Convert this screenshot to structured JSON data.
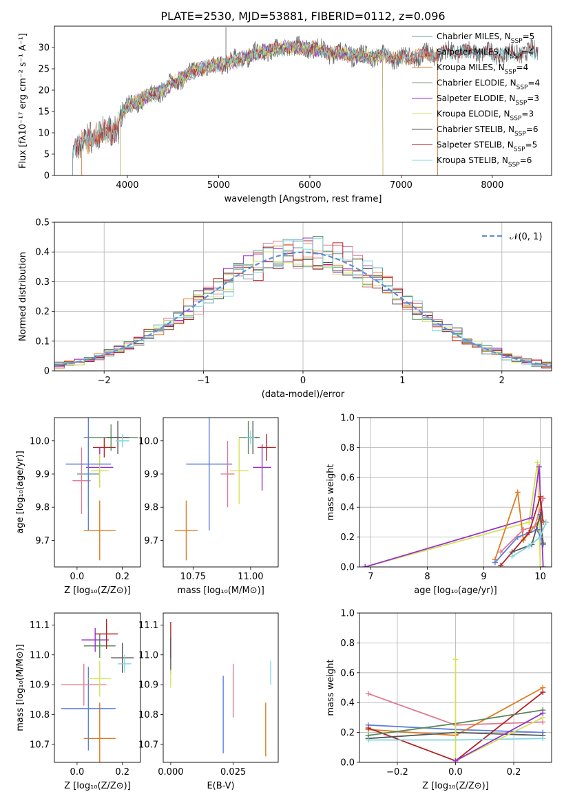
{
  "figure_title": "PLATE=2530, MJD=53881, FIBERID=0112, z=0.096",
  "colors": {
    "Chabrier MILES": "#5f9ea0",
    "Salpeter MILES": "#e07b91",
    "Kroupa MILES": "#e07b1f",
    "Chabrier ELODIE": "#5a8a5a",
    "Salpeter ELODIE": "#9932cc",
    "Kroupa ELODIE": "#d4e157",
    "Chabrier STELIB": "#555555",
    "Salpeter STELIB": "#b22222",
    "Kroupa STELIB": "#7fd6e0",
    "normal": "#5b8fd6",
    "blue": "#5b7fdb"
  },
  "chart_data": [
    {
      "id": "spectrum",
      "type": "line",
      "title": "",
      "xlabel": "wavelength [Angstrom, rest frame]",
      "ylabel": "Flux [fλ10⁻¹⁷ erg cm⁻² s⁻¹ A⁻¹]",
      "xlim": [
        3200,
        8650
      ],
      "ylim": [
        0,
        35
      ],
      "xticks": [
        4000,
        5000,
        6000,
        7000,
        8000
      ],
      "yticks": [
        0,
        5,
        10,
        15,
        20,
        25,
        30
      ],
      "grid": false,
      "legend": "right",
      "envelope": {
        "x": [
          3450,
          3550,
          3700,
          3850,
          4000,
          4150,
          4300,
          4450,
          4600,
          4800,
          5000,
          5200,
          5400,
          5600,
          5800,
          6000,
          6200,
          6400,
          6600,
          6800,
          7000,
          7200,
          7400,
          7600,
          7800,
          8000,
          8200,
          8400
        ],
        "y": [
          6.5,
          8.5,
          9.5,
          10.5,
          16,
          18,
          19,
          21,
          23,
          25,
          26,
          27,
          28.5,
          29.5,
          30,
          30,
          29,
          28.5,
          28,
          28,
          27.5,
          28,
          28.5,
          29,
          29,
          28.5,
          28.5,
          29
        ]
      },
      "series": [
        {
          "name": "Chabrier MILES, N_SSP=5",
          "start": 3500,
          "end": 7400
        },
        {
          "name": "Salpeter MILES, N_SSP=4",
          "start": 3500,
          "end": 7400
        },
        {
          "name": "Kroupa MILES, N_SSP=4",
          "start": 3500,
          "end": 7400
        },
        {
          "name": "Chabrier ELODIE, N_SSP=4",
          "start": 3920,
          "end": 6800
        },
        {
          "name": "Salpeter ELODIE, N_SSP=3",
          "start": 3920,
          "end": 6800
        },
        {
          "name": "Kroupa ELODIE, N_SSP=3",
          "start": 3920,
          "end": 6800
        },
        {
          "name": "Chabrier STELIB, N_SSP=6",
          "start": 3400,
          "end": 8500
        },
        {
          "name": "Salpeter STELIB, N_SSP=5",
          "start": 3400,
          "end": 8500
        },
        {
          "name": "Kroupa STELIB, N_SSP=6",
          "start": 3400,
          "end": 8500
        }
      ]
    },
    {
      "id": "residuals",
      "type": "histogram",
      "xlabel": "(data-model)/error",
      "ylabel": "Normed distribution",
      "xlim": [
        -2.5,
        2.5
      ],
      "ylim": [
        0,
        0.5
      ],
      "xticks": [
        -2,
        -1,
        0,
        1,
        2
      ],
      "xticklabels": [
        "−2",
        "−1",
        "0",
        "1",
        "2"
      ],
      "yticks": [
        0,
        0.1,
        0.2,
        0.3,
        0.4,
        0.5
      ],
      "grid": true,
      "legend": "top-right",
      "legend_label": "𝒩(0, 1)",
      "bin_width": 0.1
    },
    {
      "id": "age-vs-Z",
      "type": "errorbar",
      "xlabel": "Z [log₁₀(Z/Z⊙)]",
      "ylabel": "age  [log₁₀(age/yr)]",
      "xlim": [
        -0.1,
        0.28
      ],
      "ylim": [
        9.62,
        10.07
      ],
      "xticks": [
        0.0,
        0.2
      ],
      "xticklabels": [
        "0.0",
        "0.2"
      ],
      "yticks": [
        9.7,
        9.8,
        9.9,
        10.0
      ],
      "yticklabels": [
        "9.7",
        "9.8",
        "9.9",
        "10.0"
      ],
      "points": [
        {
          "model": "Chabrier MILES",
          "x": 0.05,
          "y": 9.9,
          "xerr": 0.05,
          "yerr": 0.1
        },
        {
          "model": "Salpeter MILES",
          "x": 0.02,
          "y": 9.88,
          "xerr": 0.04,
          "yerr": 0.1
        },
        {
          "model": "Kroupa MILES",
          "x": 0.1,
          "y": 9.73,
          "xerr": 0.07,
          "yerr": 0.09
        },
        {
          "model": "Chabrier ELODIE",
          "x": 0.15,
          "y": 10.01,
          "xerr": 0.12,
          "yerr": 0.04
        },
        {
          "model": "Salpeter ELODIE",
          "x": 0.1,
          "y": 9.92,
          "xerr": 0.06,
          "yerr": 0.06
        },
        {
          "model": "Kroupa ELODIE",
          "x": 0.1,
          "y": 9.91,
          "xerr": 0.04,
          "yerr": 0.05
        },
        {
          "model": "Chabrier STELIB",
          "x": 0.18,
          "y": 10.01,
          "xerr": 0.05,
          "yerr": 0.05
        },
        {
          "model": "Salpeter STELIB",
          "x": 0.12,
          "y": 9.98,
          "xerr": 0.05,
          "yerr": 0.03
        },
        {
          "model": "Kroupa STELIB",
          "x": 0.2,
          "y": 10.0,
          "xerr": 0.03,
          "yerr": 0.02
        },
        {
          "model": "blue",
          "x": 0.05,
          "y": 9.93,
          "xerr": 0.1,
          "yerr": 0.2
        }
      ]
    },
    {
      "id": "age-vs-mass",
      "type": "errorbar",
      "xlabel": "mass [log₁₀(M/M⊙)]",
      "ylabel": "",
      "xlim": [
        10.62,
        11.12
      ],
      "ylim": [
        9.62,
        10.07
      ],
      "xticks": [
        10.75,
        11.0
      ],
      "xticklabels": [
        "10.75",
        "11.00"
      ],
      "yticks": [
        9.7,
        9.8,
        9.9,
        10.0
      ],
      "yticklabels": [
        "9.7",
        "9.8",
        "9.9",
        "10.0"
      ],
      "points": [
        {
          "model": "Kroupa MILES",
          "x": 10.72,
          "y": 9.73,
          "xerr": 0.05,
          "yerr": 0.09
        },
        {
          "model": "blue",
          "x": 10.82,
          "y": 9.93,
          "xerr": 0.1,
          "yerr": 0.2
        },
        {
          "model": "Salpeter MILES",
          "x": 10.9,
          "y": 9.9,
          "xerr": 0.03,
          "yerr": 0.1
        },
        {
          "model": "Kroupa ELODIE",
          "x": 10.95,
          "y": 9.91,
          "xerr": 0.04,
          "yerr": 0.1
        },
        {
          "model": "Chabrier ELODIE",
          "x": 10.99,
          "y": 10.01,
          "xerr": 0.04,
          "yerr": 0.05
        },
        {
          "model": "Salpeter ELODIE",
          "x": 11.05,
          "y": 9.92,
          "xerr": 0.04,
          "yerr": 0.07
        },
        {
          "model": "Salpeter STELIB",
          "x": 11.07,
          "y": 9.98,
          "xerr": 0.04,
          "yerr": 0.04
        },
        {
          "model": "Chabrier STELIB",
          "x": 11.01,
          "y": 10.01,
          "xerr": 0.03,
          "yerr": 0.05
        },
        {
          "model": "Kroupa STELIB",
          "x": 11.0,
          "y": 10.01,
          "xerr": 0.02,
          "yerr": 0.02
        }
      ]
    },
    {
      "id": "weight-vs-age",
      "type": "line",
      "xlabel": "age  [log₁₀(age/yr)]",
      "ylabel": "mass weight",
      "xlim": [
        6.8,
        10.2
      ],
      "ylim": [
        0,
        1.0
      ],
      "xticks": [
        7,
        8,
        9,
        10
      ],
      "yticks": [
        0,
        0.2,
        0.4,
        0.6,
        0.8,
        1.0
      ],
      "yticklabels": [
        "0.0",
        "0.2",
        "0.4",
        "0.6",
        "0.8",
        "1.0"
      ],
      "grid": true,
      "series": [
        {
          "model": "Kroupa ELODIE",
          "x": [
            6.9,
            9.8,
            9.95,
            10.0
          ],
          "y": [
            0.0,
            0.3,
            0.7,
            0.0
          ]
        },
        {
          "model": "Salpeter ELODIE",
          "x": [
            6.9,
            9.85,
            9.98,
            10.05
          ],
          "y": [
            0.0,
            0.33,
            0.67,
            0.0
          ]
        },
        {
          "model": "Kroupa MILES",
          "x": [
            9.2,
            9.6,
            9.7,
            10.0,
            10.1
          ],
          "y": [
            0.05,
            0.5,
            0.18,
            0.32,
            0.3
          ]
        },
        {
          "model": "blue",
          "x": [
            9.2,
            9.6,
            9.95,
            10.05
          ],
          "y": [
            0.03,
            0.2,
            0.25,
            0.15
          ]
        },
        {
          "model": "Salpeter MILES",
          "x": [
            9.3,
            9.7,
            9.9,
            10.05
          ],
          "y": [
            0.1,
            0.25,
            0.27,
            0.46
          ]
        },
        {
          "model": "Salpeter STELIB",
          "x": [
            9.3,
            9.8,
            10.0,
            10.05
          ],
          "y": [
            0.01,
            0.23,
            0.47,
            0.3
          ]
        },
        {
          "model": "Chabrier STELIB",
          "x": [
            9.5,
            9.85,
            10.0,
            10.05
          ],
          "y": [
            0.1,
            0.15,
            0.35,
            0.16
          ]
        },
        {
          "model": "Kroupa STELIB",
          "x": [
            9.5,
            9.8,
            10.0,
            10.1
          ],
          "y": [
            0.07,
            0.14,
            0.2,
            0.3
          ]
        }
      ]
    },
    {
      "id": "mass-vs-Z",
      "type": "errorbar",
      "xlabel": "Z [log₁₀(Z/Z⊙)]",
      "ylabel": "mass [log₁₀(M/M⊙)]",
      "xlim": [
        -0.1,
        0.28
      ],
      "ylim": [
        10.64,
        11.14
      ],
      "xticks": [
        0.0,
        0.2
      ],
      "xticklabels": [
        "0.0",
        "0.2"
      ],
      "yticks": [
        10.7,
        10.8,
        10.9,
        11.0,
        11.1
      ],
      "yticklabels": [
        "10.7",
        "10.8",
        "10.9",
        "11.0",
        "11.1"
      ],
      "points": [
        {
          "model": "Kroupa MILES",
          "x": 0.1,
          "y": 10.72,
          "xerr": 0.07,
          "yerr": 0.12
        },
        {
          "model": "blue",
          "x": 0.05,
          "y": 10.82,
          "xerr": 0.12,
          "yerr": 0.14
        },
        {
          "model": "Salpeter MILES",
          "x": 0.03,
          "y": 10.9,
          "xerr": 0.1,
          "yerr": 0.07
        },
        {
          "model": "Kroupa ELODIE",
          "x": 0.1,
          "y": 10.92,
          "xerr": 0.05,
          "yerr": 0.06
        },
        {
          "model": "Chabrier ELODIE",
          "x": 0.1,
          "y": 11.03,
          "xerr": 0.07,
          "yerr": 0.04
        },
        {
          "model": "Salpeter ELODIE",
          "x": 0.08,
          "y": 11.05,
          "xerr": 0.06,
          "yerr": 0.04
        },
        {
          "model": "Salpeter STELIB",
          "x": 0.13,
          "y": 11.07,
          "xerr": 0.05,
          "yerr": 0.05
        },
        {
          "model": "Chabrier STELIB",
          "x": 0.2,
          "y": 10.99,
          "xerr": 0.05,
          "yerr": 0.05
        },
        {
          "model": "Kroupa STELIB",
          "x": 0.21,
          "y": 10.97,
          "xerr": 0.03,
          "yerr": 0.03
        }
      ]
    },
    {
      "id": "mass-vs-EBV",
      "type": "errorbar",
      "xlabel": "E(B-V)",
      "ylabel": "",
      "xlim": [
        -0.003,
        0.043
      ],
      "ylim": [
        10.64,
        11.14
      ],
      "xticks": [
        0.0,
        0.025
      ],
      "xticklabels": [
        "0.000",
        "0.025"
      ],
      "yticks": [
        10.7,
        10.8,
        10.9,
        11.0,
        11.1
      ],
      "yticklabels": [
        "10.7",
        "10.8",
        "10.9",
        "11.0",
        "11.1"
      ],
      "points": [
        {
          "model": "Salpeter STELIB",
          "x": 0.0,
          "y": 11.05,
          "xerr": 0,
          "yerr": 0.06
        },
        {
          "model": "Chabrier STELIB",
          "x": 0.0,
          "y": 11.0,
          "xerr": 0,
          "yerr": 0.06
        },
        {
          "model": "Kroupa ELODIE",
          "x": 0.0,
          "y": 10.92,
          "xerr": 0,
          "yerr": 0.03
        },
        {
          "model": "blue",
          "x": 0.021,
          "y": 10.8,
          "xerr": 0,
          "yerr": 0.13
        },
        {
          "model": "Salpeter MILES",
          "x": 0.025,
          "y": 10.88,
          "xerr": 0,
          "yerr": 0.09
        },
        {
          "model": "Kroupa MILES",
          "x": 0.038,
          "y": 10.75,
          "xerr": 0,
          "yerr": 0.09
        },
        {
          "model": "Kroupa STELIB",
          "x": 0.04,
          "y": 10.94,
          "xerr": 0,
          "yerr": 0.04
        }
      ]
    },
    {
      "id": "weight-vs-Z",
      "type": "line",
      "xlabel": "Z [log₁₀(Z/Z⊙)]",
      "ylabel": "mass weight",
      "xlim": [
        -0.33,
        0.33
      ],
      "ylim": [
        0,
        1.0
      ],
      "xticks": [
        -0.2,
        0.0,
        0.2
      ],
      "xticklabels": [
        "−0.2",
        "0.0",
        "0.2"
      ],
      "yticks": [
        0,
        0.2,
        0.4,
        0.6,
        0.8,
        1.0
      ],
      "yticklabels": [
        "0.0",
        "0.2",
        "0.4",
        "0.6",
        "0.8",
        "1.0"
      ],
      "grid": true,
      "series": [
        {
          "model": "Salpeter MILES",
          "x": [
            -0.3,
            0.0,
            0.3
          ],
          "y": [
            0.46,
            0.25,
            0.27
          ]
        },
        {
          "model": "blue",
          "x": [
            -0.3,
            0.0,
            0.3
          ],
          "y": [
            0.25,
            0.22,
            0.2
          ]
        },
        {
          "model": "Kroupa MILES",
          "x": [
            -0.3,
            0.0,
            0.3
          ],
          "y": [
            0.22,
            0.18,
            0.5
          ]
        },
        {
          "model": "Salpeter STELIB",
          "x": [
            -0.3,
            0.0,
            0.3
          ],
          "y": [
            0.23,
            0.01,
            0.47
          ]
        },
        {
          "model": "Chabrier ELODIE",
          "x": [
            -0.3,
            0.0,
            0.3
          ],
          "y": [
            0.18,
            0.26,
            0.35
          ]
        },
        {
          "model": "Chabrier STELIB",
          "x": [
            -0.3,
            0.0,
            0.3
          ],
          "y": [
            0.16,
            0.2,
            0.18
          ]
        },
        {
          "model": "Kroupa STELIB",
          "x": [
            -0.3,
            0.0,
            0.3
          ],
          "y": [
            0.15,
            0.15,
            0.16
          ]
        },
        {
          "model": "Kroupa ELODIE",
          "x": [
            0.0,
            0.0,
            0.3
          ],
          "y": [
            0.69,
            0.01,
            0.3
          ]
        },
        {
          "model": "Salpeter ELODIE",
          "x": [
            0.0,
            0.3
          ],
          "y": [
            0.01,
            0.33
          ]
        }
      ]
    }
  ]
}
